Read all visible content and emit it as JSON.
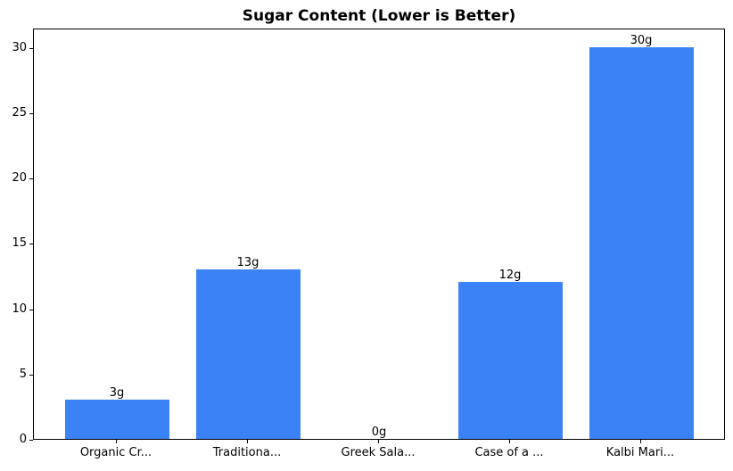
{
  "figure": {
    "background": "#ffffff"
  },
  "chart_data": {
    "type": "bar",
    "title": "Sugar Content (Lower is Better)",
    "categories": [
      "Organic Cr...",
      "Traditiona...",
      "Greek Sala...",
      "Case of a ...",
      "Kalbi Mari..."
    ],
    "values": [
      3,
      13,
      0,
      12,
      30
    ],
    "bar_labels": [
      "3g",
      "13g",
      "0g",
      "12g",
      "30g"
    ],
    "yticks": [
      0,
      5,
      10,
      15,
      20,
      25,
      30
    ],
    "ylim": [
      0,
      31.5
    ],
    "xlabel": "",
    "ylabel": "",
    "grid": false,
    "legend": false,
    "bar_color": "#3b82f6",
    "text_color": "#000000",
    "spine_color": "#000000"
  }
}
